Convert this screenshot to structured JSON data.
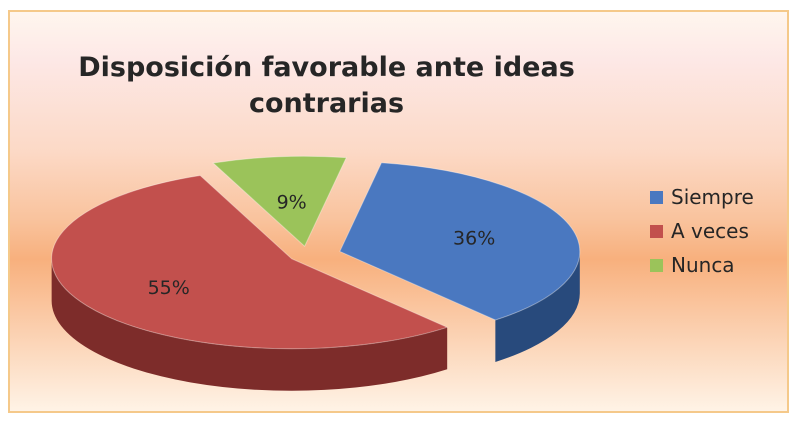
{
  "chart_data": {
    "type": "pie",
    "title_lines": [
      "Disposición favorable ante ideas",
      "contrarias"
    ],
    "slices": [
      {
        "name": "Siempre",
        "value": 36,
        "label": "36%",
        "color": "#4a78c0",
        "side_color": "#284a7c"
      },
      {
        "name": "A veces",
        "value": 55,
        "label": "55%",
        "color": "#c2504d",
        "side_color": "#7d2c2a"
      },
      {
        "name": "Nunca",
        "value": 9,
        "label": "9%",
        "color": "#9bc35a",
        "side_color": "#5e7a30"
      }
    ],
    "legend_position": "right",
    "style": "3d-exploded"
  }
}
